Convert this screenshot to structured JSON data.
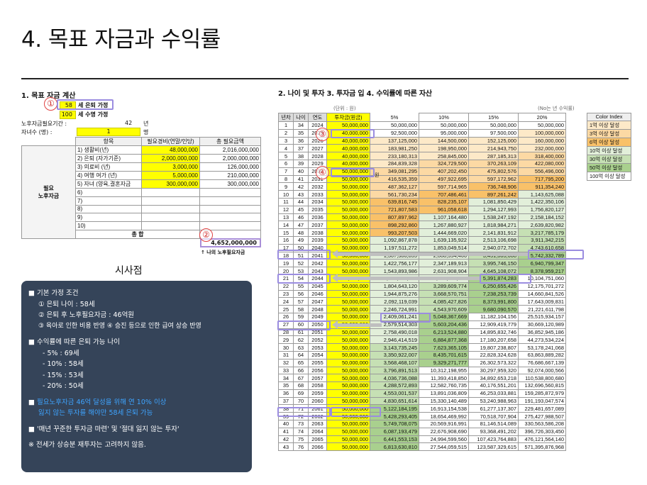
{
  "title": "4. 목표 자금과 수익률",
  "left": {
    "heading": "1. 목표 자금 계산",
    "retire_age_label": "세 은퇴 가정",
    "retire_age": "58",
    "life_age_label": "세 수명 가정",
    "life_age": "100",
    "period_label": "노후자금필요기간 :",
    "period_value": "42",
    "period_unit": "년",
    "children_label": "자녀수 (명) :",
    "children_value": "1",
    "children_unit": "명",
    "table": {
      "headers": [
        "항목",
        "필요경비(연말/인당)",
        "총 필요금액"
      ],
      "group_label_1": "필요",
      "group_label_2": "노후자금",
      "rows": [
        {
          "item": "1) 생활비(년)",
          "cost": "48,000,000",
          "total": "2,016,000,000"
        },
        {
          "item": "2) 은퇴 (자가기준)",
          "cost": "2,000,000,000",
          "total": "2,000,000,000"
        },
        {
          "item": "3) 의료비 (년)",
          "cost": "3,000,000",
          "total": "126,000,000"
        },
        {
          "item": "4) 여행 여가 (년)",
          "cost": "5,000,000",
          "total": "210,000,000"
        },
        {
          "item": "5) 자녀 (양육,결혼자금",
          "cost": "300,000,000",
          "total": "300,000,000"
        },
        {
          "item": "6)",
          "cost": "",
          "total": ""
        },
        {
          "item": "7)",
          "cost": "",
          "total": ""
        },
        {
          "item": "8)",
          "cost": "",
          "total": ""
        },
        {
          "item": "9)",
          "cost": "",
          "total": ""
        },
        {
          "item": "10)",
          "cost": "",
          "total": ""
        }
      ],
      "sum_label": "총 합",
      "sum_value": "4,652,000,000"
    },
    "total_note": "↑ 나의 노후필요자금"
  },
  "insight": {
    "title": "시사점",
    "b1": "■ 기본 가정 조건",
    "b1_1": "① 은퇴 나이 : 58세",
    "b1_2": "② 은퇴 후 노후필요자금 : 46억원",
    "b1_3": "③ 육아로 인한 비용 반영 ④ 승진 등으로 인한 급여 상승 반영",
    "b2": "■ 수익률에 따른 은퇴 가능 나이",
    "b2_1": "- 5% : 69세",
    "b2_2": "- 10% : 58세",
    "b2_3": "- 15% : 53세",
    "b2_4": "- 20% : 50세",
    "b3_a": "필요노후자금 46억 달성을 위해 연 10% 이상",
    "b3_b": "잃지 않는 투자를 해야만 58세 은퇴 가능",
    "b3_prefix": "■ ",
    "b4": "■ '매년 꾸준한 투자금 마련' 및 '절대 잃지 않는 투자'",
    "b5": "※ 전세가 상승분 재투자는 고려하지 않음."
  },
  "right": {
    "heading": "2. 나이 및 투자 3. 투자금 입   4. 수익률에 따른 자산",
    "unit_note": "(단위 : 원)",
    "rate_note": "(No는 년 수익률)",
    "headers": [
      "년차",
      "나이",
      "연도",
      "투자금(원금)",
      "5%",
      "10%",
      "15%",
      "20%"
    ],
    "rows": [
      [
        "1",
        "34",
        "2024",
        "50,000,000",
        "50,000,000",
        "50,000,000",
        "50,000,000",
        "50,000,000"
      ],
      [
        "2",
        "35",
        "2025",
        "40,000,000",
        "92,500,000",
        "95,000,000",
        "97,500,000",
        "100,000,000"
      ],
      [
        "3",
        "36",
        "2026",
        "40,000,000",
        "137,125,000",
        "144,500,000",
        "152,125,000",
        "160,000,000"
      ],
      [
        "4",
        "37",
        "2027",
        "40,000,000",
        "183,981,250",
        "198,950,000",
        "214,943,750",
        "232,000,000"
      ],
      [
        "5",
        "38",
        "2028",
        "40,000,000",
        "233,180,313",
        "258,845,000",
        "287,185,313",
        "318,400,000"
      ],
      [
        "6",
        "39",
        "2029",
        "40,000,000",
        "284,839,328",
        "324,729,500",
        "370,263,109",
        "422,080,000"
      ],
      [
        "7",
        "40",
        "2030",
        "50,000,000",
        "349,081,295",
        "407,202,450",
        "475,802,576",
        "556,496,000"
      ],
      [
        "8",
        "41",
        "2031",
        "50,000,000",
        "416,535,359",
        "497,922,695",
        "597,172,962",
        "717,795,200"
      ],
      [
        "9",
        "42",
        "2032",
        "50,000,000",
        "487,362,127",
        "597,714,965",
        "736,748,906",
        "911,354,240"
      ],
      [
        "10",
        "43",
        "2033",
        "50,000,000",
        "561,730,234",
        "707,486,461",
        "897,261,242",
        "1,143,625,088"
      ],
      [
        "11",
        "44",
        "2034",
        "50,000,000",
        "639,816,745",
        "828,235,107",
        "1,081,850,429",
        "1,422,350,106"
      ],
      [
        "12",
        "45",
        "2035",
        "50,000,000",
        "721,807,583",
        "961,058,618",
        "1,294,127,993",
        "1,756,820,127"
      ],
      [
        "13",
        "46",
        "2036",
        "50,000,000",
        "807,897,962",
        "1,107,164,480",
        "1,538,247,192",
        "2,158,184,152"
      ],
      [
        "14",
        "47",
        "2037",
        "50,000,000",
        "898,292,860",
        "1,267,880,927",
        "1,818,984,271",
        "2,639,820,982"
      ],
      [
        "15",
        "48",
        "2038",
        "50,000,000",
        "993,207,503",
        "1,444,669,020",
        "2,141,831,912",
        "3,217,785,179"
      ],
      [
        "16",
        "49",
        "2039",
        "50,000,000",
        "1,092,867,878",
        "1,639,135,922",
        "2,513,106,698",
        "3,911,342,215"
      ],
      [
        "17",
        "50",
        "2040",
        "50,000,000",
        "1,197,511,272",
        "1,853,049,514",
        "2,940,072,702",
        "4,743,610,658"
      ],
      [
        "18",
        "51",
        "2041",
        "50,000,000",
        "1,307,386,835",
        "2,088,354,466",
        "3,431,083,608",
        "5,742,332,789"
      ],
      [
        "19",
        "52",
        "2042",
        "50,000,000",
        "1,422,756,177",
        "2,347,189,913",
        "3,995,746,150",
        "6,940,799,347"
      ],
      [
        "20",
        "53",
        "2043",
        "50,000,000",
        "1,543,893,986",
        "2,631,908,904",
        "4,645,108,072",
        "8,378,959,217"
      ],
      [
        "21",
        "54",
        "2044",
        "50,000,000",
        "1,671,088,685",
        "2,945,099,794",
        "5,391,874,283",
        "10,104,751,060"
      ],
      [
        "22",
        "55",
        "2045",
        "50,000,000",
        "1,804,643,120",
        "3,289,609,774",
        "6,250,655,426",
        "12,175,701,272"
      ],
      [
        "23",
        "56",
        "2046",
        "50,000,000",
        "1,944,875,276",
        "3,668,570,751",
        "7,238,253,739",
        "14,660,841,526"
      ],
      [
        "24",
        "57",
        "2047",
        "50,000,000",
        "2,092,119,039",
        "4,085,427,826",
        "8,373,991,800",
        "17,643,009,831"
      ],
      [
        "25",
        "58",
        "2048",
        "50,000,000",
        "2,246,724,991",
        "4,543,970,609",
        "9,680,090,570",
        "21,221,611,798"
      ],
      [
        "26",
        "59",
        "2049",
        "50,000,000",
        "2,409,061,241",
        "5,048,367,669",
        "11,182,104,156",
        "25,515,934,157"
      ],
      [
        "27",
        "60",
        "2050",
        "50,000,000",
        "2,579,514,303",
        "5,603,204,436",
        "12,909,419,779",
        "30,669,120,989"
      ],
      [
        "28",
        "61",
        "2051",
        "50,000,000",
        "2,758,490,018",
        "6,213,524,880",
        "14,895,832,746",
        "36,852,945,186"
      ],
      [
        "29",
        "62",
        "2052",
        "50,000,000",
        "2,946,414,519",
        "6,884,877,368",
        "17,180,207,658",
        "44,273,534,224"
      ],
      [
        "30",
        "63",
        "2053",
        "50,000,000",
        "3,143,735,245",
        "7,623,365,105",
        "19,807,238,807",
        "53,178,241,068"
      ],
      [
        "31",
        "64",
        "2054",
        "50,000,000",
        "3,350,922,007",
        "8,435,701,615",
        "22,828,324,628",
        "63,863,889,282"
      ],
      [
        "32",
        "65",
        "2055",
        "50,000,000",
        "3,568,468,107",
        "9,329,271,777",
        "26,302,573,322",
        "76,686,667,139"
      ],
      [
        "33",
        "66",
        "2056",
        "50,000,000",
        "3,796,891,513",
        "10,312,198,955",
        "30,297,959,320",
        "92,074,000,566"
      ],
      [
        "34",
        "67",
        "2057",
        "50,000,000",
        "4,036,736,088",
        "11,393,418,850",
        "34,892,653,218",
        "110,538,800,680"
      ],
      [
        "35",
        "68",
        "2058",
        "50,000,000",
        "4,288,572,893",
        "12,582,760,735",
        "40,176,551,201",
        "132,696,560,815"
      ],
      [
        "36",
        "69",
        "2059",
        "50,000,000",
        "4,553,001,537",
        "13,891,036,809",
        "46,253,033,881",
        "159,285,872,979"
      ],
      [
        "37",
        "70",
        "2060",
        "50,000,000",
        "4,830,651,614",
        "15,330,140,489",
        "53,240,988,963",
        "191,193,047,574"
      ],
      [
        "38",
        "71",
        "2061",
        "50,000,000",
        "5,122,184,195",
        "16,913,154,538",
        "61,277,137,307",
        "229,481,657,089"
      ],
      [
        "39",
        "72",
        "2062",
        "50,000,000",
        "5,428,293,405",
        "18,654,469,992",
        "70,518,707,904",
        "275,427,988,507"
      ],
      [
        "40",
        "73",
        "2063",
        "50,000,000",
        "5,749,708,075",
        "20,569,916,991",
        "81,146,514,089",
        "330,563,586,208"
      ],
      [
        "41",
        "74",
        "2064",
        "50,000,000",
        "6,087,193,479",
        "22,676,908,690",
        "93,368,491,202",
        "396,726,303,450"
      ],
      [
        "42",
        "75",
        "2065",
        "50,000,000",
        "6,441,553,153",
        "24,994,599,560",
        "107,423,764,883",
        "476,121,564,140"
      ],
      [
        "43",
        "76",
        "2066",
        "50,000,000",
        "6,813,630,810",
        "27,544,059,515",
        "123,587,329,615",
        "571,395,876,968"
      ]
    ],
    "legend_header": "Color Index",
    "legend": [
      {
        "label": "1억 이상 달성",
        "color": "#fde9c8"
      },
      {
        "label": "3억 이상 달성",
        "color": "#fcd9a4"
      },
      {
        "label": "6억 이상 달성",
        "color": "#f9c169"
      },
      {
        "label": "10억 이상 달성",
        "color": "#e2efda"
      },
      {
        "label": "30억 이상 달성",
        "color": "#c6e0b4"
      },
      {
        "label": "50억 이상 달성",
        "color": "#a9d08e"
      },
      {
        "label": "100억 이상 달성",
        "color": "#ffffff"
      }
    ],
    "circle_3": "③",
    "circle_4": "④",
    "side_mark": "원"
  },
  "circle_1": "①",
  "circle_2": "②",
  "colors": {
    "yellow": "#ffff00",
    "panel": "#354459",
    "highlight": "#9b8de0"
  }
}
